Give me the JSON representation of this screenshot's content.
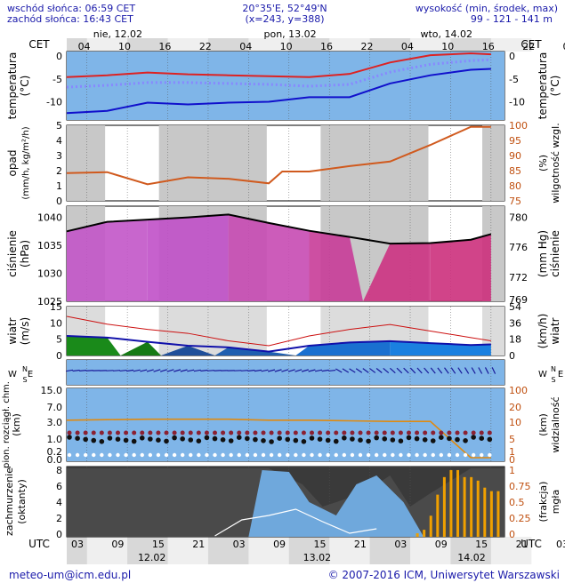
{
  "header": {
    "sunrise": "wschód słońca: 06:59 CET",
    "sunset": "zachód słońca: 16:43 CET",
    "coords": "20°35'E, 52°49'N",
    "grid": "(x=243, y=388)",
    "height_title": "wysokość (min, środek, max)",
    "height_values": "99 - 121 - 141 m"
  },
  "footer": {
    "email": "meteo-um@icm.edu.pl",
    "copyright": "© 2007-2016 ICM, Uniwersytet Warszawski"
  },
  "time_axis": {
    "top_zone": "CET",
    "bottom_zone": "UTC",
    "top_hours": [
      "04",
      "10",
      "16",
      "22",
      "04",
      "10",
      "16",
      "22",
      "04",
      "10",
      "16",
      "22",
      "04"
    ],
    "bottom_hours": [
      "03",
      "09",
      "15",
      "21",
      "03",
      "09",
      "15",
      "21",
      "03",
      "09",
      "15",
      "21",
      "03"
    ],
    "top_days": [
      "nie, 12.02",
      "pon, 13.02",
      "wto, 14.02"
    ],
    "bottom_days": [
      "12.02",
      "13.02",
      "14.02"
    ]
  },
  "colors": {
    "panel_blue": "#7fb5e8",
    "night_gray": "#c8c8c8",
    "temp_max": "#dd2222",
    "temp_min": "#1010cc",
    "pressure_line": "#000000",
    "humidity_line": "#d05a1e",
    "wind_line": "#1010aa",
    "fog_bars": "#f0a000"
  },
  "chart_data": [
    {
      "type": "line",
      "title": "",
      "ylabel_left": "temperatura (°C)",
      "ylabel_right": "temperatura (°C)",
      "yticks": [
        0,
        -5,
        -10
      ],
      "ylim": [
        -14,
        1
      ],
      "x_hours": [
        0,
        6,
        12,
        18,
        24,
        30,
        36,
        42,
        48,
        54,
        60,
        63
      ],
      "series": [
        {
          "name": "max",
          "values": [
            -4.6,
            -4.2,
            -3.6,
            -4.0,
            -4.2,
            -4.4,
            -4.6,
            -3.9,
            -1.4,
            0.2,
            0.6,
            0.4
          ]
        },
        {
          "name": "średnia",
          "values": [
            -6.8,
            -6.4,
            -5.8,
            -5.8,
            -6.0,
            -6.2,
            -6.6,
            -6.2,
            -3.5,
            -1.8,
            -1.0,
            -0.8
          ]
        },
        {
          "name": "min",
          "values": [
            -12.5,
            -12.0,
            -10.2,
            -10.6,
            -10.2,
            -10.0,
            -9.0,
            -9.0,
            -6.0,
            -4.2,
            -3.0,
            -2.8
          ]
        }
      ]
    },
    {
      "type": "line",
      "title": "",
      "ylabel_left": "opad (mm/h, kg/m²/h)",
      "ylabel_right": "wilgotność wzgl. (%)",
      "yticks_left": [
        5,
        4,
        3,
        2,
        1,
        0
      ],
      "yticks_right": [
        100,
        95,
        90,
        85,
        80,
        75
      ],
      "ylim_right": [
        75,
        100
      ],
      "x_hours": [
        0,
        6,
        12,
        18,
        24,
        30,
        32,
        36,
        42,
        48,
        54,
        60,
        63
      ],
      "series": [
        {
          "name": "wilgotność",
          "values": [
            84.2,
            84.5,
            80.5,
            82.8,
            82.3,
            80.8,
            84.7,
            84.7,
            86.5,
            88.0,
            93.5,
            99.5,
            99.5
          ]
        },
        {
          "name": "opad",
          "values": [
            0,
            0,
            0,
            0,
            0,
            0,
            0,
            0,
            0,
            0,
            0,
            0,
            0
          ]
        }
      ]
    },
    {
      "type": "area",
      "title": "",
      "ylabel_left": "ciśnienie (hPa)",
      "ylabel_right": "ciśnienie (mm Hg)",
      "yticks_left": [
        1040,
        1035,
        1030,
        1025
      ],
      "yticks_right": [
        780,
        776,
        772,
        769
      ],
      "ylim": [
        1025,
        1042
      ],
      "x_hours": [
        0,
        6,
        12,
        18,
        24,
        30,
        36,
        42,
        48,
        54,
        60,
        63
      ],
      "series": [
        {
          "name": "ciśnienie",
          "values": [
            1037.5,
            1039.2,
            1039.6,
            1040.0,
            1040.5,
            1039.0,
            1037.6,
            1036.5,
            1035.3,
            1035.4,
            1036.0,
            1037.0
          ]
        }
      ]
    },
    {
      "type": "area",
      "title": "",
      "ylabel_left": "wiatr (m/s)",
      "ylabel_right": "wiatr (km/h)",
      "yticks_left": [
        15,
        10,
        5,
        0
      ],
      "yticks_right": [
        54,
        36,
        18,
        0
      ],
      "ylim": [
        0,
        15
      ],
      "x_hours": [
        0,
        6,
        12,
        18,
        24,
        30,
        36,
        42,
        48,
        54,
        60,
        63
      ],
      "series": [
        {
          "name": "prędkość",
          "values": [
            6.0,
            5.5,
            4.2,
            3.0,
            2.5,
            1.2,
            3.0,
            4.0,
            4.4,
            3.8,
            3.2,
            3.4
          ]
        },
        {
          "name": "porywy",
          "values": [
            12.0,
            9.6,
            8.0,
            6.8,
            4.5,
            3.0,
            6.0,
            8.0,
            9.5,
            7.5,
            5.5,
            4.5
          ]
        }
      ]
    },
    {
      "type": "scatter",
      "title": "",
      "ylabel_left": "pion. rozciągł. chm. (km)",
      "ylabel_right": "widzialność (km)",
      "yticks_left": [
        15.0,
        7.0,
        3.0,
        1.0,
        0.2,
        0.0
      ],
      "yticks_right": [
        100,
        20,
        10,
        5,
        1,
        0
      ],
      "x_hours": [
        0,
        6,
        12,
        18,
        24,
        30,
        36,
        42,
        48,
        54,
        60,
        63
      ],
      "series": [
        {
          "name": "widzialność",
          "values": [
            13,
            14,
            15,
            15,
            15,
            13,
            13,
            12,
            11,
            11,
            0.05,
            0.05
          ]
        }
      ]
    },
    {
      "type": "bar",
      "title": "",
      "ylabel_left": "zachmurzenie (oktanty)",
      "ylabel_right": "mgła (frakcja)",
      "yticks_left": [
        8,
        6,
        4,
        2,
        0
      ],
      "yticks_right": [
        1,
        0.75,
        0.5,
        0.25,
        0
      ],
      "ylim_right": [
        0,
        1
      ],
      "x_hours": [
        52,
        53,
        54,
        55,
        56,
        57,
        58,
        59,
        60,
        61,
        62,
        63,
        64
      ],
      "series": [
        {
          "name": "mgła",
          "values": [
            0.05,
            0.1,
            0.3,
            0.6,
            0.85,
            0.95,
            0.95,
            0.85,
            0.85,
            0.8,
            0.7,
            0.65,
            0.65
          ]
        }
      ]
    }
  ]
}
